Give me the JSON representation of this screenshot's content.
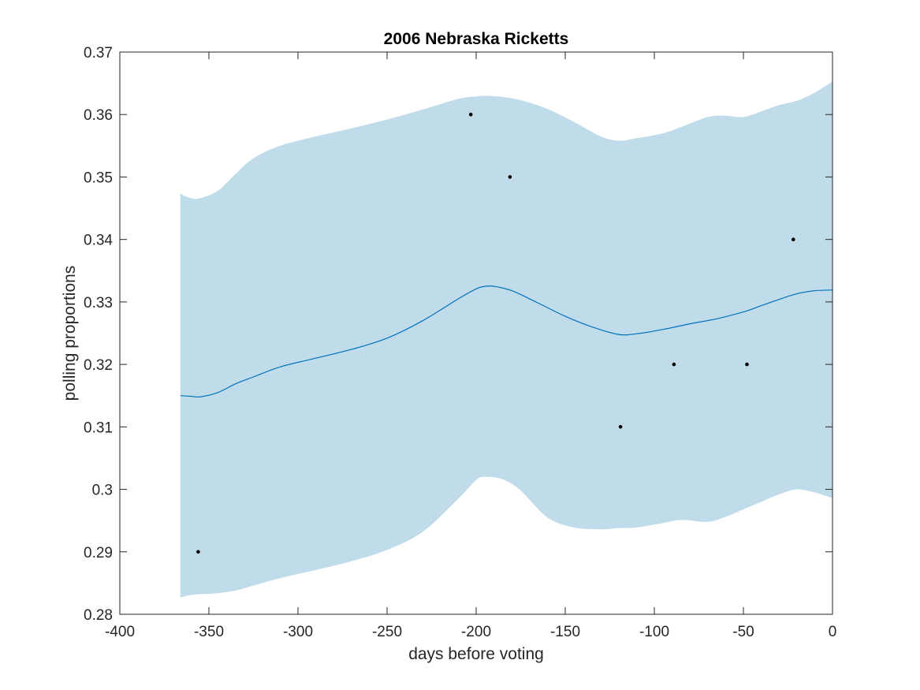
{
  "chart_data": {
    "type": "line",
    "title": "2006 Nebraska Ricketts",
    "xlabel": "days before voting",
    "ylabel": "polling proportions",
    "xlim": [
      -400,
      0
    ],
    "ylim": [
      0.28,
      0.37
    ],
    "xticks": [
      -400,
      -350,
      -300,
      -250,
      -200,
      -150,
      -100,
      -50,
      0
    ],
    "xtick_labels": [
      "-400",
      "-350",
      "-300",
      "-250",
      "-200",
      "-150",
      "-100",
      "-50",
      "0"
    ],
    "yticks": [
      0.28,
      0.29,
      0.3,
      0.31,
      0.32,
      0.33,
      0.34,
      0.35,
      0.36,
      0.37
    ],
    "ytick_labels": [
      "0.28",
      "0.29",
      "0.3",
      "0.31",
      "0.32",
      "0.33",
      "0.34",
      "0.35",
      "0.36",
      "0.37"
    ],
    "grid": false,
    "colors": {
      "band": "#c0dcea",
      "line": "#0072bd",
      "points": "#000000",
      "axes": "#262626"
    },
    "series": [
      {
        "kind": "band",
        "x": [
          -366,
          -360,
          -355,
          -345,
          -335,
          -325,
          -310,
          -290,
          -270,
          -250,
          -230,
          -210,
          -200,
          -195,
          -185,
          -175,
          -160,
          -145,
          -130,
          -120,
          -110,
          -95,
          -85,
          -70,
          -60,
          -50,
          -40,
          -30,
          -20,
          -10,
          0
        ],
        "upper": [
          0.3473,
          0.3466,
          0.3466,
          0.3478,
          0.3505,
          0.353,
          0.355,
          0.3565,
          0.3578,
          0.3592,
          0.3608,
          0.3625,
          0.3629,
          0.363,
          0.3628,
          0.3623,
          0.3609,
          0.3588,
          0.3565,
          0.3558,
          0.3562,
          0.357,
          0.358,
          0.3596,
          0.3598,
          0.3596,
          0.3605,
          0.3615,
          0.3622,
          0.3635,
          0.3653
        ],
        "lower": [
          0.2827,
          0.2831,
          0.2832,
          0.2834,
          0.2838,
          0.2846,
          0.2858,
          0.2871,
          0.2885,
          0.2903,
          0.2932,
          0.2985,
          0.3015,
          0.302,
          0.3016,
          0.2998,
          0.2955,
          0.2939,
          0.2936,
          0.2938,
          0.2939,
          0.2946,
          0.2951,
          0.2948,
          0.2956,
          0.2968,
          0.298,
          0.2992,
          0.3,
          0.2995,
          0.2986
        ]
      },
      {
        "kind": "line",
        "x": [
          -366,
          -360,
          -355,
          -345,
          -335,
          -325,
          -310,
          -290,
          -270,
          -250,
          -230,
          -210,
          -200,
          -195,
          -190,
          -180,
          -165,
          -150,
          -135,
          -120,
          -110,
          -95,
          -80,
          -65,
          -50,
          -40,
          -30,
          -20,
          -10,
          0
        ],
        "y": [
          0.315,
          0.3149,
          0.3148,
          0.3155,
          0.3169,
          0.318,
          0.3196,
          0.321,
          0.3224,
          0.3242,
          0.327,
          0.3305,
          0.3321,
          0.3325,
          0.3325,
          0.3318,
          0.3298,
          0.3277,
          0.326,
          0.3248,
          0.3249,
          0.3256,
          0.3265,
          0.3273,
          0.3284,
          0.3294,
          0.3304,
          0.3313,
          0.3318,
          0.3319
        ]
      },
      {
        "kind": "scatter",
        "x": [
          -356,
          -203,
          -181,
          -119,
          -89,
          -48,
          -22
        ],
        "y": [
          0.29,
          0.36,
          0.35,
          0.31,
          0.32,
          0.32,
          0.34
        ]
      }
    ]
  }
}
